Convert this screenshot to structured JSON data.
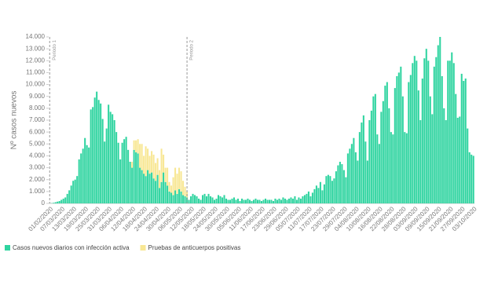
{
  "chart_data": {
    "type": "bar",
    "stacked": true,
    "ylabel": "Nº casos nuevos",
    "ylim": [
      0,
      14000
    ],
    "yticks": [
      0,
      {
        "value": 1000,
        "label": "1.000"
      },
      {
        "value": 2000,
        "label": "2.000"
      },
      {
        "value": 3000,
        "label": "3.000"
      },
      {
        "value": 4000,
        "label": "4.000"
      },
      {
        "value": 5000,
        "label": "5.000"
      },
      {
        "value": 6000,
        "label": "6.000"
      },
      {
        "value": 7000,
        "label": "7.000"
      },
      {
        "value": 8000,
        "label": "8.000"
      },
      {
        "value": 9000,
        "label": "9.000"
      },
      {
        "value": 10000,
        "label": "10.000"
      },
      {
        "value": 11000,
        "label": "11.000"
      },
      {
        "value": 12000,
        "label": "12.000"
      },
      {
        "value": 13000,
        "label": "13.000"
      },
      {
        "value": 14000,
        "label": "14.000"
      }
    ],
    "annotations": [
      {
        "text": "Periodo 1",
        "index": 0
      },
      {
        "text": "Periodo 2",
        "index": 70
      }
    ],
    "categories": [
      "01/02/2020",
      null,
      null,
      null,
      null,
      null,
      "07/03/2020",
      null,
      null,
      null,
      null,
      null,
      "13/03/2020",
      null,
      null,
      null,
      null,
      null,
      "19/03/2020",
      null,
      null,
      null,
      null,
      null,
      "25/03/2020",
      null,
      null,
      null,
      null,
      null,
      "31/03/2020",
      null,
      null,
      null,
      null,
      null,
      "06/04/2020",
      null,
      null,
      null,
      null,
      null,
      "12/04/2020",
      null,
      null,
      null,
      null,
      null,
      "18/04/2020",
      null,
      null,
      null,
      null,
      null,
      "24/04/2020",
      null,
      null,
      null,
      null,
      null,
      "30/04/2020",
      null,
      null,
      null,
      null,
      null,
      "06/05/2020",
      null,
      null,
      null,
      null,
      null,
      "12/05/2020",
      null,
      null,
      null,
      null,
      null,
      "18/05/2020",
      null,
      null,
      null,
      null,
      null,
      "24/05/2020",
      null,
      null,
      null,
      null,
      null,
      "30/05/2020",
      null,
      null,
      null,
      null,
      null,
      "05/06/2020",
      null,
      null,
      null,
      null,
      null,
      "11/06/2020",
      null,
      null,
      null,
      null,
      null,
      "17/06/2020",
      null,
      null,
      null,
      null,
      null,
      "23/06/2020",
      null,
      null,
      null,
      null,
      null,
      "29/06/2020",
      null,
      null,
      null,
      null,
      null,
      "05/07/2020",
      null,
      null,
      null,
      null,
      null,
      "11/07/2020",
      null,
      null,
      null,
      null,
      null,
      "17/07/2020",
      null,
      null,
      null,
      null,
      null,
      "23/07/2020",
      null,
      null,
      null,
      null,
      null,
      "29/07/2020",
      null,
      null,
      null,
      null,
      null,
      "04/08/2020",
      null,
      null,
      null,
      null,
      null,
      "10/08/2020",
      null,
      null,
      null,
      null,
      null,
      "16/08/2020",
      null,
      null,
      null,
      null,
      null,
      "22/08/2020",
      null,
      null,
      null,
      null,
      null,
      "28/08/2020",
      null,
      null,
      null,
      null,
      null,
      "03/09/2020",
      null,
      null,
      null,
      null,
      null,
      "09/09/2020",
      null,
      null,
      null,
      null,
      null,
      "15/09/2020",
      null,
      null,
      null,
      null,
      null,
      "21/09/2020",
      null,
      null,
      null,
      null,
      null,
      "27/09/2020",
      null,
      null,
      null,
      null,
      null,
      "03/10/2020"
    ],
    "series": [
      {
        "name": "Casos nuevos diarios con infección activa",
        "color": "#2fd4a0",
        "values": [
          10,
          20,
          50,
          100,
          150,
          200,
          300,
          400,
          500,
          800,
          1100,
          1500,
          1900,
          2000,
          2300,
          3700,
          4200,
          4600,
          5500,
          4900,
          4700,
          7900,
          8100,
          8900,
          9400,
          8700,
          8400,
          7100,
          5200,
          6300,
          8300,
          7700,
          7500,
          7000,
          6000,
          5100,
          3700,
          5100,
          5400,
          5600,
          4500,
          3500,
          3000,
          4500,
          4300,
          4200,
          3000,
          2800,
          2500,
          2300,
          2800,
          2500,
          2600,
          2100,
          1900,
          2400,
          1300,
          1800,
          2600,
          1800,
          1500,
          1000,
          900,
          700,
          1100,
          800,
          1200,
          1000,
          700,
          600,
          500,
          300,
          600,
          800,
          700,
          600,
          400,
          300,
          700,
          800,
          600,
          800,
          600,
          500,
          300,
          400,
          700,
          600,
          500,
          700,
          400,
          300,
          300,
          400,
          500,
          300,
          400,
          200,
          400,
          300,
          300,
          400,
          300,
          200,
          300,
          400,
          300,
          300,
          200,
          300,
          400,
          300,
          300,
          300,
          200,
          400,
          300,
          400,
          300,
          500,
          400,
          300,
          400,
          500,
          400,
          600,
          300,
          500,
          400,
          600,
          700,
          800,
          1000,
          600,
          900,
          1200,
          1500,
          1300,
          1800,
          1100,
          1600,
          2300,
          2400,
          2300,
          1900,
          2100,
          2700,
          3200,
          3500,
          3300,
          2800,
          2200,
          4200,
          4600,
          5000,
          5500,
          4300,
          3600,
          6000,
          6800,
          7400,
          5200,
          3600,
          7000,
          7800,
          9000,
          9200,
          5800,
          5000,
          7700,
          8600,
          9900,
          10200,
          8000,
          6000,
          5800,
          9700,
          10700,
          11000,
          11500,
          9000,
          6000,
          5900,
          10200,
          10800,
          11800,
          12400,
          12000,
          9500,
          7000,
          10500,
          12200,
          13000,
          12000,
          9000,
          7500,
          11500,
          12300,
          13300,
          14000,
          10700,
          8000,
          7000,
          12000,
          12000,
          12700,
          11800,
          9200,
          7200,
          7300,
          10900,
          10300,
          10500,
          6300,
          4300,
          4100,
          4000
        ]
      },
      {
        "name": "Pruebas de anticuerpos positivas",
        "color": "#f8e794",
        "values": [
          0,
          0,
          0,
          0,
          0,
          0,
          0,
          0,
          0,
          0,
          0,
          0,
          0,
          0,
          0,
          0,
          0,
          0,
          0,
          0,
          0,
          0,
          0,
          0,
          0,
          0,
          0,
          0,
          0,
          0,
          0,
          0,
          0,
          0,
          0,
          0,
          0,
          0,
          0,
          0,
          0,
          0,
          500,
          800,
          1000,
          1200,
          2000,
          2200,
          1500,
          2500,
          1800,
          1500,
          1800,
          2000,
          1500,
          1400,
          1500,
          2800,
          1500,
          1200,
          1500,
          800,
          600,
          1500,
          1900,
          1700,
          1800,
          1700,
          1200,
          800,
          500,
          0,
          0,
          0,
          0,
          0,
          0,
          0,
          0,
          0,
          0,
          0,
          0,
          0,
          0,
          0,
          0,
          0,
          0,
          0,
          0,
          0,
          0,
          0,
          0,
          0,
          0,
          0,
          0,
          0,
          0,
          0,
          0,
          0,
          0,
          0,
          0,
          0,
          0,
          0,
          0,
          0,
          0,
          0,
          0,
          0,
          0,
          0,
          0,
          0,
          0,
          0,
          0,
          0,
          0,
          0,
          0,
          0,
          0,
          0,
          0,
          0,
          0,
          0,
          0,
          0,
          0,
          0,
          0,
          0,
          0,
          0,
          0,
          0,
          0,
          0,
          0,
          0,
          0,
          0,
          0,
          0,
          0,
          0,
          0,
          0,
          0,
          0,
          0,
          0,
          0,
          0,
          0,
          0,
          0,
          0,
          0,
          0,
          0,
          0,
          0,
          0,
          0,
          0,
          0,
          0,
          0,
          0,
          0,
          0,
          0,
          0,
          0,
          0,
          0,
          0,
          0,
          0,
          0,
          0,
          0,
          0,
          0,
          0,
          0,
          0,
          0,
          0,
          0,
          0,
          0,
          0,
          0,
          0,
          0,
          0,
          0,
          0,
          0,
          0,
          0,
          0,
          0,
          0,
          0,
          0,
          0
        ]
      }
    ]
  }
}
